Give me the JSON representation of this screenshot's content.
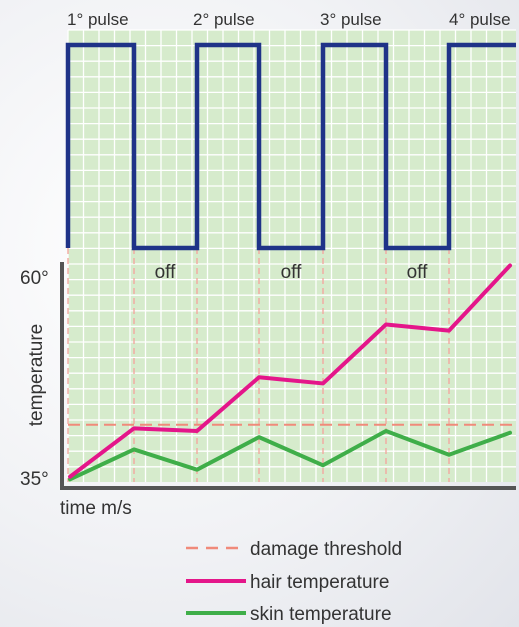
{
  "chart_data": {
    "type": "line",
    "title": "",
    "pulse_labels": [
      "1° pulse",
      "2° pulse",
      "3° pulse",
      "4° pulse"
    ],
    "off_labels": [
      "off",
      "off",
      "off"
    ],
    "ylabel": "temperature",
    "xlabel": "time m/s",
    "y_ticks": [
      "60°",
      "35°"
    ],
    "ylim": [
      35,
      60
    ],
    "pulse_signal": {
      "segments": [
        "on",
        "off",
        "on",
        "off",
        "on",
        "off",
        "on"
      ]
    },
    "damage_threshold": 41.5,
    "x": [
      0,
      1,
      2,
      3,
      4,
      5,
      6,
      7
    ],
    "series": [
      {
        "name": "hair temperature",
        "values": [
          35.6,
          41.1,
          40.8,
          46.9,
          46.2,
          52.9,
          52.2,
          59.6
        ]
      },
      {
        "name": "skin temperature",
        "values": [
          35.3,
          38.7,
          36.4,
          40.1,
          36.9,
          40.8,
          38.1,
          40.6
        ]
      }
    ],
    "legend": [
      {
        "label": "damage threshold",
        "style": "dashed",
        "color": "#f08a7a"
      },
      {
        "label": "hair temperature",
        "style": "solid",
        "color": "#e4168a"
      },
      {
        "label": "skin temperature",
        "style": "solid",
        "color": "#3fae49"
      }
    ],
    "legend_position": "bottom",
    "grid": true,
    "colors": {
      "pulse": "#1f3388",
      "grid_bg": "#d6ebcc",
      "grid_line": "#ffffff",
      "threshold": "#f08a7a",
      "boundary": "#f2a9a0",
      "axis": "#555555"
    }
  }
}
